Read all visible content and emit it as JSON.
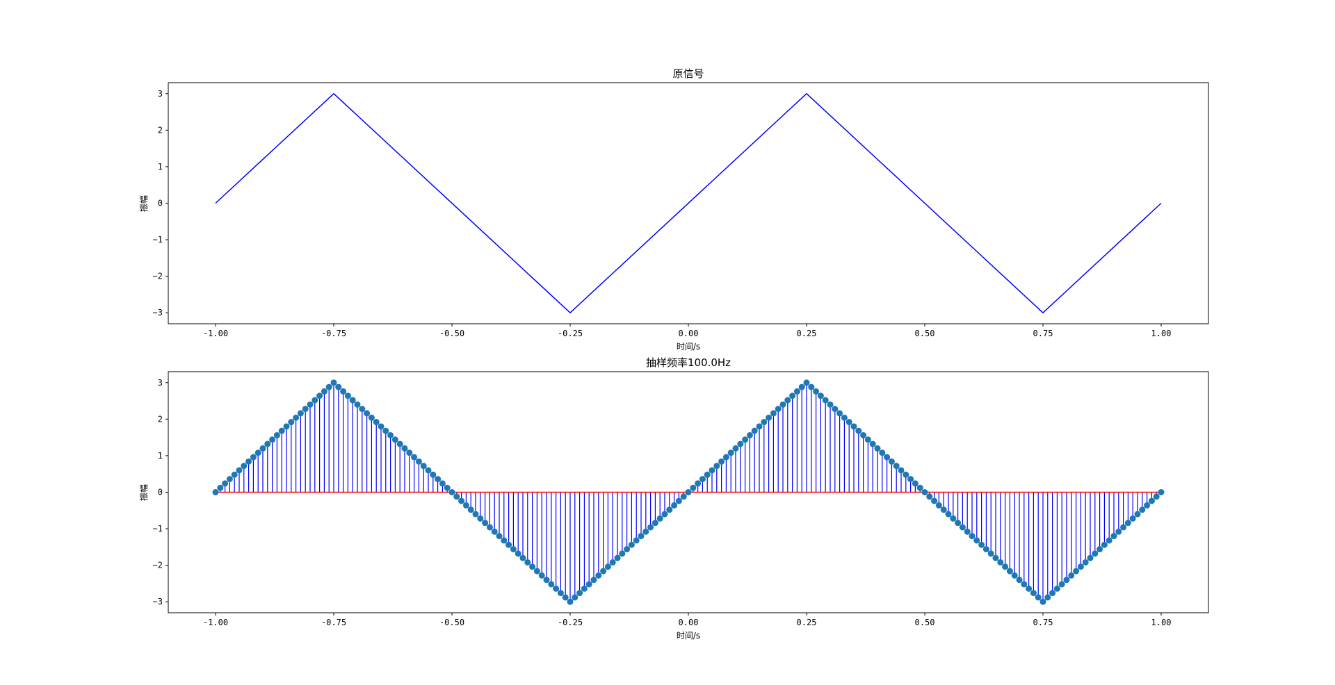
{
  "chart_data": [
    {
      "type": "line",
      "title": "原信号",
      "xlabel": "时间/s",
      "ylabel": "振幅",
      "xlim": [
        -1.1,
        1.1
      ],
      "ylim": [
        -3.3,
        3.3
      ],
      "xticks": [
        "-1.00",
        "-0.75",
        "-0.50",
        "-0.25",
        "0.00",
        "0.25",
        "0.50",
        "0.75",
        "1.00"
      ],
      "yticks": [
        "−3",
        "−2",
        "−1",
        "0",
        "1",
        "2",
        "3"
      ],
      "line_color": "#0000ff",
      "grid": false,
      "series": [
        {
          "x": [
            -1.0,
            -0.75,
            -0.25,
            0.25,
            0.75,
            1.0
          ],
          "y": [
            0,
            3,
            -3,
            3,
            -3,
            0
          ]
        }
      ]
    },
    {
      "type": "stem",
      "title": "抽样频率100.0Hz",
      "xlabel": "时间/s",
      "ylabel": "振幅",
      "xlim": [
        -1.1,
        1.1
      ],
      "ylim": [
        -3.3,
        3.3
      ],
      "xticks": [
        "-1.00",
        "-0.75",
        "-0.50",
        "-0.25",
        "0.00",
        "0.25",
        "0.50",
        "0.75",
        "1.00"
      ],
      "yticks": [
        "−3",
        "−2",
        "−1",
        "0",
        "1",
        "2",
        "3"
      ],
      "sampling_rate_hz": 100.0,
      "sample_range": [
        -1.0,
        1.0
      ],
      "stem_color": "#0000ff",
      "baseline_color": "#ff0000",
      "marker_color": "#1f77b4",
      "grid": false,
      "signal": "triangle wave, amplitude 3, period 1 s, zero at t=-1, peaks at -0.75 and 0.25, troughs at -0.25 and 0.75"
    }
  ]
}
